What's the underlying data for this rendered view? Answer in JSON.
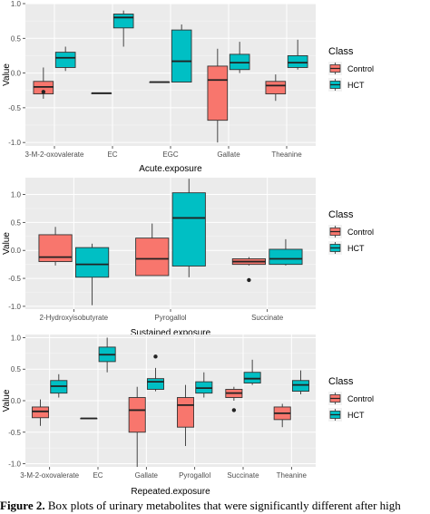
{
  "chart_data": [
    {
      "type": "box",
      "xlabel": "Acute.exposure",
      "ylabel": "Value",
      "ylim": [
        -1.05,
        1.0
      ],
      "yticks": [
        -1.0,
        -0.5,
        0.0,
        0.5,
        1.0
      ],
      "ytick_labels": [
        "-1.0",
        "-0.5",
        "0.0",
        "0.5",
        "1.0"
      ],
      "categories": [
        "3-M-2-oxovalerate",
        "EC",
        "EGC",
        "Gallate",
        "Theanine"
      ],
      "legend": {
        "title": "Class",
        "labels": [
          "Control",
          "HCT"
        ],
        "position": "right"
      },
      "colors": {
        "Control": "#f8766d",
        "HCT": "#00bfc4"
      },
      "series": [
        {
          "name": "Control",
          "boxes": [
            {
              "min": -0.37,
              "q1": -0.3,
              "median": -0.2,
              "q3": -0.12,
              "max": 0.08,
              "outliers": [
                -0.27
              ]
            },
            {
              "min": -0.29,
              "q1": -0.29,
              "median": -0.29,
              "q3": -0.29,
              "max": -0.29,
              "outliers": []
            },
            {
              "min": -0.13,
              "q1": -0.13,
              "median": -0.13,
              "q3": -0.13,
              "max": -0.13,
              "outliers": []
            },
            {
              "min": -1.0,
              "q1": -0.68,
              "median": -0.1,
              "q3": 0.1,
              "max": 0.35,
              "outliers": []
            },
            {
              "min": -0.4,
              "q1": -0.3,
              "median": -0.18,
              "q3": -0.12,
              "max": -0.02,
              "outliers": []
            }
          ]
        },
        {
          "name": "HCT",
          "boxes": [
            {
              "min": 0.03,
              "q1": 0.08,
              "median": 0.22,
              "q3": 0.3,
              "max": 0.38,
              "outliers": []
            },
            {
              "min": 0.38,
              "q1": 0.65,
              "median": 0.8,
              "q3": 0.85,
              "max": 0.9,
              "outliers": []
            },
            {
              "min": -0.13,
              "q1": -0.13,
              "median": 0.17,
              "q3": 0.62,
              "max": 0.7,
              "outliers": []
            },
            {
              "min": 0.0,
              "q1": 0.05,
              "median": 0.15,
              "q3": 0.27,
              "max": 0.45,
              "outliers": []
            },
            {
              "min": 0.05,
              "q1": 0.08,
              "median": 0.15,
              "q3": 0.25,
              "max": 0.48,
              "outliers": []
            }
          ]
        }
      ]
    },
    {
      "type": "box",
      "xlabel": "Sustained.exposure",
      "ylabel": "Value",
      "ylim": [
        -1.05,
        1.3
      ],
      "yticks": [
        -1.0,
        -0.5,
        0.0,
        0.5,
        1.0
      ],
      "ytick_labels": [
        "-1.0",
        "-0.5",
        "0.0",
        "0.5",
        "1.0"
      ],
      "categories": [
        "2-Hydroxyisobutyrate",
        "Pyrogallol",
        "Succinate"
      ],
      "legend": {
        "title": "Class",
        "labels": [
          "Control",
          "HCT"
        ],
        "position": "right"
      },
      "colors": {
        "Control": "#f8766d",
        "HCT": "#00bfc4"
      },
      "series": [
        {
          "name": "Control",
          "boxes": [
            {
              "min": -0.27,
              "q1": -0.2,
              "median": -0.12,
              "q3": 0.28,
              "max": 0.42,
              "outliers": []
            },
            {
              "min": -0.45,
              "q1": -0.45,
              "median": -0.15,
              "q3": 0.22,
              "max": 0.48,
              "outliers": []
            },
            {
              "min": -0.27,
              "q1": -0.25,
              "median": -0.2,
              "q3": -0.15,
              "max": -0.12,
              "outliers": [
                -0.53
              ]
            }
          ]
        },
        {
          "name": "HCT",
          "boxes": [
            {
              "min": -0.98,
              "q1": -0.48,
              "median": -0.25,
              "q3": 0.05,
              "max": 0.12,
              "outliers": []
            },
            {
              "min": -0.48,
              "q1": -0.28,
              "median": 0.58,
              "q3": 1.03,
              "max": 1.28,
              "outliers": []
            },
            {
              "min": -0.27,
              "q1": -0.25,
              "median": -0.15,
              "q3": 0.02,
              "max": 0.2,
              "outliers": []
            }
          ]
        }
      ]
    },
    {
      "type": "box",
      "xlabel": "Repeated.exposure",
      "ylabel": "Value",
      "ylim": [
        -1.05,
        1.05
      ],
      "yticks": [
        -1.0,
        -0.5,
        0.0,
        0.5,
        1.0
      ],
      "ytick_labels": [
        "-1.0",
        "-0.5",
        "0.0",
        "0.5",
        "1.0"
      ],
      "categories": [
        "3-M-2-oxovalerate",
        "EC",
        "Gallate",
        "Pyrogallol",
        "Succinate",
        "Theanine"
      ],
      "legend": {
        "title": "Class",
        "labels": [
          "Control",
          "HCT"
        ],
        "position": "right"
      },
      "colors": {
        "Control": "#f8766d",
        "HCT": "#00bfc4"
      },
      "series": [
        {
          "name": "Control",
          "boxes": [
            {
              "min": -0.4,
              "q1": -0.27,
              "median": -0.17,
              "q3": -0.1,
              "max": 0.02,
              "outliers": []
            },
            {
              "min": -0.28,
              "q1": -0.28,
              "median": -0.28,
              "q3": -0.28,
              "max": -0.28,
              "outliers": []
            },
            {
              "min": -1.05,
              "q1": -0.5,
              "median": -0.15,
              "q3": 0.05,
              "max": 0.22,
              "outliers": []
            },
            {
              "min": -0.72,
              "q1": -0.42,
              "median": -0.07,
              "q3": 0.05,
              "max": 0.25,
              "outliers": []
            },
            {
              "min": 0.0,
              "q1": 0.05,
              "median": 0.12,
              "q3": 0.18,
              "max": 0.22,
              "outliers": [
                -0.15
              ]
            },
            {
              "min": -0.42,
              "q1": -0.3,
              "median": -0.2,
              "q3": -0.1,
              "max": -0.05,
              "outliers": []
            }
          ]
        },
        {
          "name": "HCT",
          "boxes": [
            {
              "min": 0.05,
              "q1": 0.12,
              "median": 0.23,
              "q3": 0.32,
              "max": 0.42,
              "outliers": []
            },
            {
              "min": 0.45,
              "q1": 0.62,
              "median": 0.73,
              "q3": 0.85,
              "max": 1.0,
              "outliers": []
            },
            {
              "min": 0.15,
              "q1": 0.18,
              "median": 0.3,
              "q3": 0.35,
              "max": 0.52,
              "outliers": [
                0.7
              ]
            },
            {
              "min": 0.05,
              "q1": 0.12,
              "median": 0.2,
              "q3": 0.3,
              "max": 0.45,
              "outliers": []
            },
            {
              "min": 0.25,
              "q1": 0.28,
              "median": 0.35,
              "q3": 0.45,
              "max": 0.65,
              "outliers": []
            },
            {
              "min": 0.1,
              "q1": 0.15,
              "median": 0.25,
              "q3": 0.32,
              "max": 0.48,
              "outliers": []
            }
          ]
        }
      ]
    }
  ],
  "caption": {
    "label": "Figure 2.",
    "text": " Box plots of urinary metabolites that were significantly different after high"
  }
}
